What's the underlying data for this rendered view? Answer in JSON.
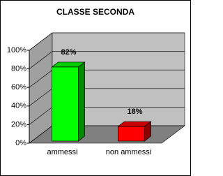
{
  "chart_data": {
    "type": "bar3d",
    "title": "CLASSE SECONDA",
    "categories": [
      "ammessi",
      "non ammessi"
    ],
    "values": [
      82,
      18
    ],
    "value_labels": [
      "82%",
      "18%"
    ],
    "colors": [
      "#00ff00",
      "#ff0000"
    ],
    "ylim": [
      0,
      100
    ],
    "yticks": [
      {
        "value": 0,
        "label": "0%"
      },
      {
        "value": 20,
        "label": "20%"
      },
      {
        "value": 40,
        "label": "40%"
      },
      {
        "value": 60,
        "label": "60%"
      },
      {
        "value": 80,
        "label": "80%"
      },
      {
        "value": 100,
        "label": "100%"
      }
    ],
    "grid": true
  }
}
